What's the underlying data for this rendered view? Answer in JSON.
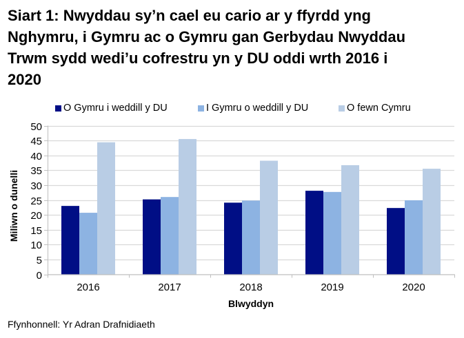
{
  "title": "Siart 1: Nwyddau sy’n cael eu cario ar y ffyrdd yng Nghymru, i Gymru ac o Gymru gan Gerbydau Nwyddau Trwm sydd wedi’u cofrestru yn y DU oddi wrth 2016 i 2020",
  "title_lines": [
    "Siart 1: Nwyddau sy’n cael eu cario ar y ffyrdd yng",
    "Nghymru, i Gymru ac o Gymru gan Gerbydau Nwyddau",
    "Trwm sydd wedi’u cofrestru yn y DU oddi wrth 2016 i",
    "2020"
  ],
  "legend": [
    {
      "label": "O Gymru i weddill y DU",
      "color": "#000E85"
    },
    {
      "label": "I Gymru o weddill y DU",
      "color": "#8DB3E2"
    },
    {
      "label": "O fewn Cymru",
      "color": "#B9CDE5"
    }
  ],
  "footer": "Ffynhonnell: Yr Adran Drafnidiaeth",
  "chart_data": {
    "type": "bar",
    "title": "Siart 1: Nwyddau sy’n cael eu cario ar y ffyrdd yng Nghymru, i Gymru ac o Gymru gan Gerbydau Nwyddau Trwm sydd wedi’u cofrestru yn y DU oddi wrth 2016 i 2020",
    "categories": [
      "2016",
      "2017",
      "2018",
      "2019",
      "2020"
    ],
    "series": [
      {
        "name": "O Gymru i weddill y DU",
        "color": "#000E85",
        "values": [
          23.0,
          25.2,
          24.1,
          28.1,
          22.3
        ]
      },
      {
        "name": "I Gymru o weddill y DU",
        "color": "#8DB3E2",
        "values": [
          20.7,
          26.0,
          24.8,
          27.7,
          24.9
        ]
      },
      {
        "name": "O fewn Cymru",
        "color": "#B9CDE5",
        "values": [
          44.4,
          45.5,
          38.2,
          36.7,
          35.5
        ]
      }
    ],
    "xlabel": "Blwyddyn",
    "ylabel": "Miliwn o dunelli",
    "ylim": [
      0,
      50
    ],
    "yticks": [
      0,
      5,
      10,
      15,
      20,
      25,
      30,
      35,
      40,
      45,
      50
    ],
    "grid": true,
    "legend_position": "top"
  }
}
